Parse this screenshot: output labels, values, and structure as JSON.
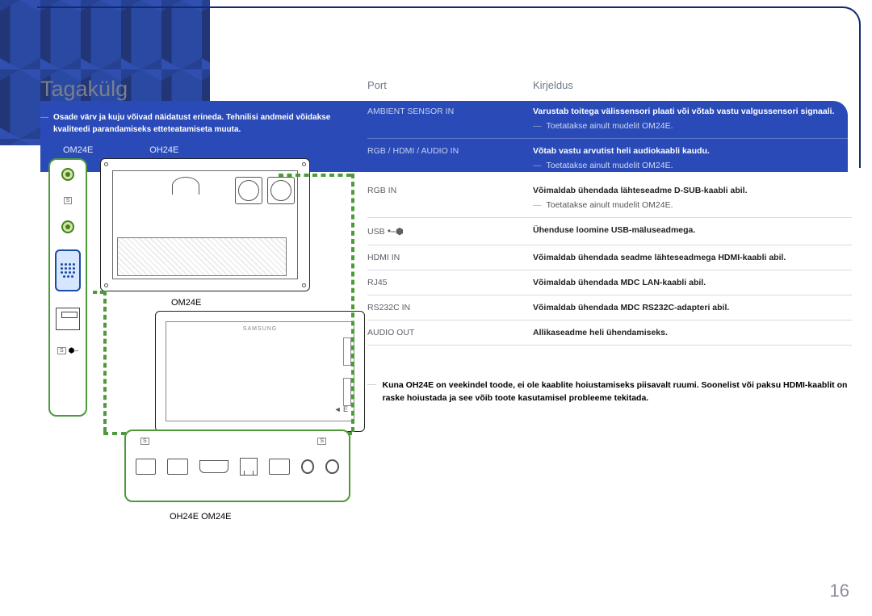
{
  "colors": {
    "blue_bg": "#2a4ab8",
    "dark_blue": "#122a70",
    "green": "#4d9a3a",
    "text_gray": "#7a7f8c",
    "divider": "#d7dbe2"
  },
  "typography": {
    "heading_fontsize_pt": 20,
    "body_fontsize_pt": 8,
    "table_head_fontsize_pt": 10,
    "page_number_fontsize_pt": 16
  },
  "heading": "Tagakülg",
  "intro": {
    "dash": "―",
    "text": "Osade värv ja kuju võivad näidatust erineda. Tehnilisi andmeid võidakse kvaliteedi parandamiseks etteteatamiseta muuta."
  },
  "diagrams": {
    "left_label": "OM24E",
    "right_label": "OH24E",
    "mid_label": "OM24E",
    "bottom_label": "OH24E OM24E",
    "brand_text": "SAMSUNG",
    "tiny_s": "S",
    "arrow_e": "◄ E"
  },
  "usb_glyph": "⎓",
  "table": {
    "head_port": "Port",
    "head_desc": "Kirjeldus",
    "note_om24e": "Toetatakse ainult mudelit OM24E.",
    "rows": [
      {
        "port": "AMBIENT SENSOR IN",
        "desc": "Varustab toitega välissensori plaati või võtab vastu valgussensori signaali.",
        "has_note": true,
        "on_blue": true,
        "note_style": "light",
        "is_usb": false
      },
      {
        "port": "RGB / HDMI / AUDIO IN",
        "desc": "Võtab vastu arvutist heli audiokaabli kaudu.",
        "has_note": true,
        "on_blue": true,
        "note_style": "light",
        "is_usb": false
      },
      {
        "port": "RGB IN",
        "desc": "Võimaldab ühendada lähteseadme D-SUB-kaabli abil.",
        "has_note": true,
        "on_blue": false,
        "note_style": "dark",
        "is_usb": false
      },
      {
        "port": "USB",
        "desc": "Ühenduse loomine USB-mäluseadmega.",
        "has_note": false,
        "on_blue": false,
        "note_style": "dark",
        "is_usb": true
      },
      {
        "port": "HDMI IN",
        "desc": "Võimaldab ühendada seadme lähteseadmega HDMI-kaabli abil.",
        "has_note": false,
        "on_blue": false,
        "note_style": "dark",
        "is_usb": false
      },
      {
        "port": "RJ45",
        "desc": "Võimaldab ühendada MDC LAN-kaabli abil.",
        "has_note": false,
        "on_blue": false,
        "note_style": "dark",
        "is_usb": false
      },
      {
        "port": "RS232C IN",
        "desc": "Võimaldab ühendada MDC RS232C-adapteri abil.",
        "has_note": false,
        "on_blue": false,
        "note_style": "dark",
        "is_usb": false
      },
      {
        "port": "AUDIO OUT",
        "desc": "Allikaseadme heli ühendamiseks.",
        "has_note": false,
        "on_blue": false,
        "note_style": "dark",
        "is_usb": false
      }
    ]
  },
  "footer_note": {
    "dash": "―",
    "text": "Kuna OH24E on veekindel toode, ei ole kaablite hoiustamiseks piisavalt ruumi. Soonelist või paksu HDMI-kaablit on raske hoiustada ja see võib toote kasutamisel probleeme tekitada."
  },
  "page_number": "16"
}
